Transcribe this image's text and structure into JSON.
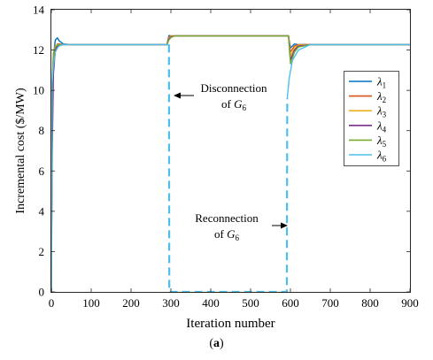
{
  "caption": {
    "open": "(",
    "label": "a",
    "close": ")"
  },
  "chart_data": {
    "type": "line",
    "title": "",
    "xlabel": "Iteration number",
    "ylabel": "Incremental cost ($/MW)",
    "xlim": [
      0,
      900
    ],
    "ylim": [
      0,
      14
    ],
    "xticks": [
      0,
      100,
      200,
      300,
      400,
      500,
      600,
      700,
      800,
      900
    ],
    "yticks": [
      0,
      2,
      4,
      6,
      8,
      10,
      12,
      14
    ],
    "grid": false,
    "legend_position": "right",
    "legend": [
      {
        "base": "λ",
        "sub": "1",
        "color": "#0072BD"
      },
      {
        "base": "λ",
        "sub": "2",
        "color": "#D95319"
      },
      {
        "base": "λ",
        "sub": "3",
        "color": "#EDB120"
      },
      {
        "base": "λ",
        "sub": "4",
        "color": "#7E2F8E"
      },
      {
        "base": "λ",
        "sub": "5",
        "color": "#77AC30"
      },
      {
        "base": "λ",
        "sub": "6",
        "color": "#4DBEEE"
      }
    ],
    "series": [
      {
        "name": "λ1",
        "color": "#0072BD",
        "x": [
          0,
          2,
          5,
          10,
          15,
          20,
          30,
          50,
          290,
          295,
          300,
          310,
          590,
          595,
          600,
          610,
          620,
          650,
          900
        ],
        "y": [
          0,
          9.6,
          11.7,
          12.5,
          12.6,
          12.45,
          12.3,
          12.27,
          12.27,
          12.72,
          12.7,
          12.7,
          12.7,
          12.7,
          12.1,
          12.3,
          12.27,
          12.27,
          12.27
        ]
      },
      {
        "name": "λ2",
        "color": "#D95319",
        "x": [
          0,
          2,
          5,
          10,
          15,
          20,
          30,
          50,
          290,
          295,
          300,
          310,
          590,
          595,
          600,
          610,
          620,
          650,
          900
        ],
        "y": [
          0,
          9.4,
          11.5,
          12.1,
          12.3,
          12.3,
          12.27,
          12.27,
          12.27,
          12.65,
          12.7,
          12.7,
          12.7,
          12.7,
          11.9,
          12.2,
          12.27,
          12.27,
          12.27
        ]
      },
      {
        "name": "λ3",
        "color": "#EDB120",
        "x": [
          0,
          2,
          5,
          10,
          15,
          20,
          30,
          50,
          290,
          295,
          300,
          310,
          590,
          595,
          600,
          610,
          620,
          650,
          900
        ],
        "y": [
          0,
          10.0,
          11.9,
          12.2,
          12.27,
          12.27,
          12.27,
          12.27,
          12.27,
          12.6,
          12.68,
          12.7,
          12.7,
          12.7,
          11.7,
          12.1,
          12.25,
          12.27,
          12.27
        ]
      },
      {
        "name": "λ4",
        "color": "#7E2F8E",
        "x": [
          0,
          2,
          5,
          10,
          15,
          20,
          30,
          50,
          290,
          295,
          300,
          310,
          590,
          595,
          600,
          610,
          620,
          650,
          900
        ],
        "y": [
          0,
          6.7,
          10.8,
          12.0,
          12.2,
          12.27,
          12.27,
          12.27,
          12.27,
          12.55,
          12.65,
          12.7,
          12.7,
          12.7,
          11.5,
          12.0,
          12.2,
          12.27,
          12.27
        ]
      },
      {
        "name": "λ5",
        "color": "#77AC30",
        "x": [
          0,
          2,
          5,
          10,
          15,
          20,
          30,
          50,
          290,
          295,
          300,
          310,
          590,
          595,
          600,
          610,
          620,
          650,
          900
        ],
        "y": [
          0,
          10.5,
          11.8,
          12.15,
          12.25,
          12.27,
          12.27,
          12.27,
          12.27,
          12.5,
          12.62,
          12.7,
          12.7,
          12.7,
          11.3,
          11.9,
          12.15,
          12.27,
          12.27
        ]
      },
      {
        "name": "λ6",
        "color": "#4DBEEE",
        "x": [
          0,
          1,
          5,
          10,
          15,
          20,
          30,
          50,
          290,
          295,
          296,
          300,
          310,
          590,
          591,
          592,
          597,
          605,
          620,
          650,
          900
        ],
        "y": [
          0,
          10.2,
          11.2,
          11.9,
          12.1,
          12.2,
          12.27,
          12.27,
          12.27,
          12.27,
          0,
          0,
          0,
          0,
          0,
          9.6,
          10.6,
          11.5,
          12.0,
          12.27,
          12.27
        ],
        "dashed_segment_x": [
          295,
          592
        ]
      }
    ],
    "annotations": [
      {
        "line1": "Disconnection",
        "line2_prefix": "of ",
        "line2_var": "G",
        "line2_sub": "6",
        "arrow": "left",
        "target_x": 295,
        "target_y": 9.7
      },
      {
        "line1": "Reconnection",
        "line2_prefix": "of ",
        "line2_var": "G",
        "line2_sub": "6",
        "arrow": "right",
        "target_x": 590,
        "target_y": 3.3
      }
    ]
  }
}
